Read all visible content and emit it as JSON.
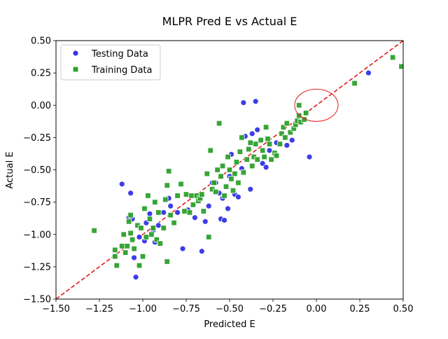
{
  "chart_data": {
    "type": "scatter",
    "title": "MLPR Pred E vs Actual E",
    "xlabel": "Predicted E",
    "ylabel": "Actual E",
    "xlim": [
      -1.5,
      0.5
    ],
    "ylim": [
      -1.5,
      0.5
    ],
    "x_ticks": [
      -1.5,
      -1.25,
      -1.0,
      -0.75,
      -0.5,
      -0.25,
      0.0,
      0.25,
      0.5
    ],
    "y_ticks": [
      -1.5,
      -1.25,
      -1.0,
      -0.75,
      -0.5,
      -0.25,
      0.0,
      0.25,
      0.5
    ],
    "x_tick_labels": [
      "−1.50",
      "−1.25",
      "−1.00",
      "−0.75",
      "−0.50",
      "−0.25",
      "0.00",
      "0.25",
      "0.50"
    ],
    "y_tick_labels": [
      "−1.50",
      "−1.25",
      "−1.00",
      "−0.75",
      "−0.50",
      "−0.25",
      "0.00",
      "0.25",
      "0.50"
    ],
    "grid": false,
    "legend_position": "top-left",
    "reference_line": {
      "style": "dashed",
      "color": "#e31a1c",
      "from": [
        -1.5,
        -1.5
      ],
      "to": [
        0.5,
        0.5
      ]
    },
    "annotation": {
      "shape": "ellipse",
      "color": "#e31a1c",
      "center": [
        0.0,
        0.0
      ],
      "radius_x": 0.125,
      "radius_y": 0.125
    },
    "series": [
      {
        "name": "Testing Data",
        "marker": "circle",
        "color": "#3333e6",
        "points": [
          [
            -1.12,
            -0.61
          ],
          [
            -1.07,
            -0.68
          ],
          [
            -1.05,
            -1.18
          ],
          [
            -1.04,
            -1.33
          ],
          [
            -1.08,
            -0.87
          ],
          [
            -1.06,
            -0.88
          ],
          [
            -1.02,
            -1.02
          ],
          [
            -0.99,
            -1.05
          ],
          [
            -0.98,
            -0.91
          ],
          [
            -0.96,
            -0.84
          ],
          [
            -0.94,
            -0.97
          ],
          [
            -0.93,
            -1.06
          ],
          [
            -0.91,
            -0.93
          ],
          [
            -0.88,
            -0.83
          ],
          [
            -0.85,
            -0.72
          ],
          [
            -0.84,
            -0.78
          ],
          [
            -0.8,
            -0.83
          ],
          [
            -0.77,
            -1.11
          ],
          [
            -0.74,
            -0.81
          ],
          [
            -0.7,
            -0.87
          ],
          [
            -0.67,
            -0.72
          ],
          [
            -0.66,
            -1.13
          ],
          [
            -0.64,
            -0.9
          ],
          [
            -0.62,
            -0.78
          ],
          [
            -0.6,
            -0.6
          ],
          [
            -0.58,
            -0.6
          ],
          [
            -0.56,
            -0.68
          ],
          [
            -0.54,
            -0.72
          ],
          [
            -0.55,
            -0.88
          ],
          [
            -0.53,
            -0.89
          ],
          [
            -0.51,
            -0.8
          ],
          [
            -0.5,
            -0.55
          ],
          [
            -0.49,
            -0.38
          ],
          [
            -0.47,
            -0.69
          ],
          [
            -0.45,
            -0.71
          ],
          [
            -0.43,
            -0.49
          ],
          [
            -0.42,
            0.02
          ],
          [
            -0.41,
            -0.24
          ],
          [
            -0.38,
            -0.65
          ],
          [
            -0.37,
            -0.22
          ],
          [
            -0.35,
            0.03
          ],
          [
            -0.34,
            -0.19
          ],
          [
            -0.31,
            -0.45
          ],
          [
            -0.29,
            -0.48
          ],
          [
            -0.27,
            -0.35
          ],
          [
            -0.23,
            -0.29
          ],
          [
            -0.17,
            -0.31
          ],
          [
            -0.14,
            -0.27
          ],
          [
            -0.04,
            -0.4
          ],
          [
            0.3,
            0.25
          ]
        ]
      },
      {
        "name": "Training Data",
        "marker": "square",
        "color": "#2ca02c",
        "points": [
          [
            -1.28,
            -0.97
          ],
          [
            -1.16,
            -1.12
          ],
          [
            -1.16,
            -1.17
          ],
          [
            -1.15,
            -1.24
          ],
          [
            -1.12,
            -1.09
          ],
          [
            -1.11,
            -1.0
          ],
          [
            -1.1,
            -1.14
          ],
          [
            -1.09,
            -1.09
          ],
          [
            -1.08,
            -0.9
          ],
          [
            -1.07,
            -0.99
          ],
          [
            -1.07,
            -0.85
          ],
          [
            -1.06,
            -1.04
          ],
          [
            -1.05,
            -1.11
          ],
          [
            -1.03,
            -0.93
          ],
          [
            -1.02,
            -1.24
          ],
          [
            -1.01,
            -0.95
          ],
          [
            -1.0,
            -1.17
          ],
          [
            -0.99,
            -0.8
          ],
          [
            -0.98,
            -1.02
          ],
          [
            -0.97,
            -0.7
          ],
          [
            -0.96,
            -0.88
          ],
          [
            -0.95,
            -1.0
          ],
          [
            -0.94,
            -0.95
          ],
          [
            -0.93,
            -0.75
          ],
          [
            -0.92,
            -1.04
          ],
          [
            -0.91,
            -0.83
          ],
          [
            -0.9,
            -1.07
          ],
          [
            -0.88,
            -0.95
          ],
          [
            -0.87,
            -0.73
          ],
          [
            -0.86,
            -1.21
          ],
          [
            -0.86,
            -0.62
          ],
          [
            -0.85,
            -0.51
          ],
          [
            -0.84,
            -0.85
          ],
          [
            -0.82,
            -0.91
          ],
          [
            -0.8,
            -0.7
          ],
          [
            -0.78,
            -0.61
          ],
          [
            -0.76,
            -0.82
          ],
          [
            -0.75,
            -0.69
          ],
          [
            -0.73,
            -0.83
          ],
          [
            -0.72,
            -0.7
          ],
          [
            -0.71,
            -0.77
          ],
          [
            -0.69,
            -0.7
          ],
          [
            -0.68,
            -0.74
          ],
          [
            -0.67,
            -0.72
          ],
          [
            -0.66,
            -0.69
          ],
          [
            -0.65,
            -0.82
          ],
          [
            -0.63,
            -0.53
          ],
          [
            -0.62,
            -1.02
          ],
          [
            -0.61,
            -0.35
          ],
          [
            -0.6,
            -0.65
          ],
          [
            -0.59,
            -0.6
          ],
          [
            -0.58,
            -0.67
          ],
          [
            -0.57,
            -0.5
          ],
          [
            -0.56,
            -0.14
          ],
          [
            -0.55,
            -0.55
          ],
          [
            -0.54,
            -0.47
          ],
          [
            -0.53,
            -0.7
          ],
          [
            -0.52,
            -0.63
          ],
          [
            -0.51,
            -0.4
          ],
          [
            -0.5,
            -0.5
          ],
          [
            -0.49,
            -0.57
          ],
          [
            -0.48,
            -0.66
          ],
          [
            -0.47,
            -0.53
          ],
          [
            -0.46,
            -0.44
          ],
          [
            -0.45,
            -0.6
          ],
          [
            -0.44,
            -0.36
          ],
          [
            -0.43,
            -0.25
          ],
          [
            -0.42,
            -0.52
          ],
          [
            -0.4,
            -0.42
          ],
          [
            -0.39,
            -0.34
          ],
          [
            -0.38,
            -0.29
          ],
          [
            -0.37,
            -0.47
          ],
          [
            -0.36,
            -0.4
          ],
          [
            -0.35,
            -0.3
          ],
          [
            -0.34,
            -0.42
          ],
          [
            -0.32,
            -0.27
          ],
          [
            -0.31,
            -0.35
          ],
          [
            -0.3,
            -0.4
          ],
          [
            -0.29,
            -0.17
          ],
          [
            -0.28,
            -0.26
          ],
          [
            -0.27,
            -0.3
          ],
          [
            -0.26,
            -0.42
          ],
          [
            -0.24,
            -0.37
          ],
          [
            -0.23,
            -0.39
          ],
          [
            -0.21,
            -0.3
          ],
          [
            -0.2,
            -0.22
          ],
          [
            -0.19,
            -0.17
          ],
          [
            -0.18,
            -0.25
          ],
          [
            -0.17,
            -0.14
          ],
          [
            -0.15,
            -0.21
          ],
          [
            -0.13,
            -0.18
          ],
          [
            -0.12,
            -0.15
          ],
          [
            -0.11,
            -0.12
          ],
          [
            -0.1,
            -0.08
          ],
          [
            -0.09,
            -0.13
          ],
          [
            -0.07,
            -0.11
          ],
          [
            -0.06,
            -0.06
          ],
          [
            -0.1,
            0.0
          ],
          [
            0.22,
            0.17
          ],
          [
            0.44,
            0.37
          ],
          [
            0.49,
            0.3
          ]
        ]
      }
    ]
  }
}
